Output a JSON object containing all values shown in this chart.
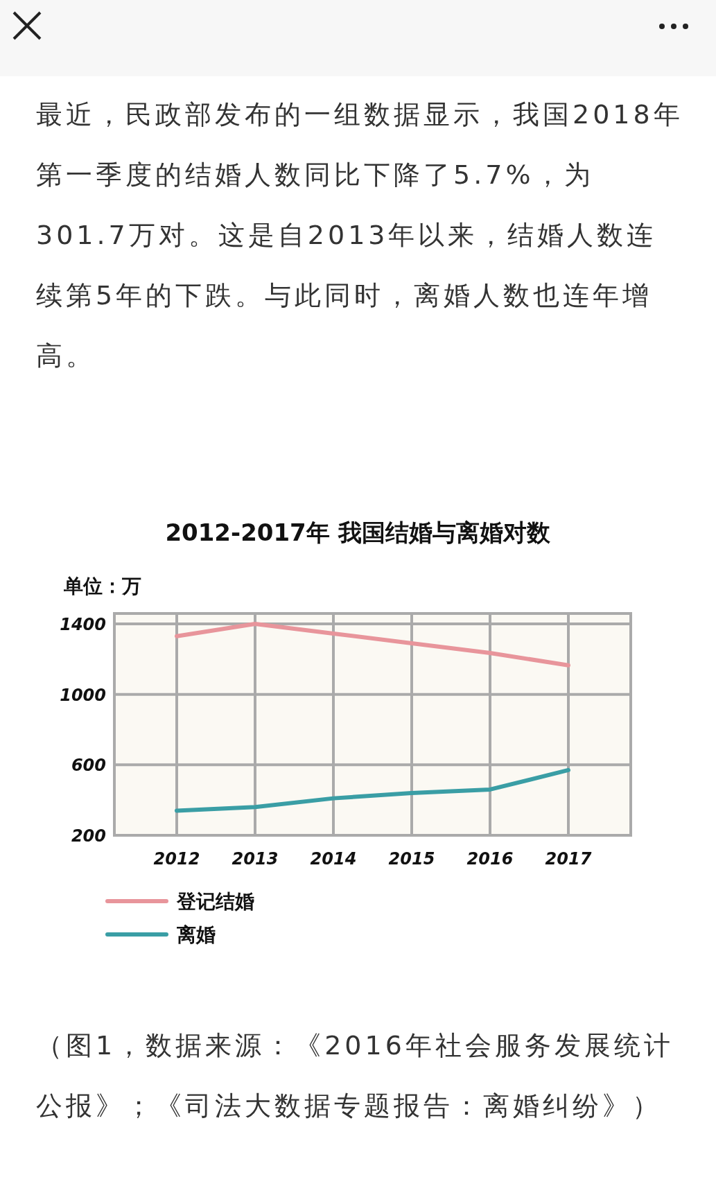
{
  "chart_data": {
    "type": "line",
    "title": "2012-2017年 我国结婚与离婚对数",
    "ylabel": "单位：万",
    "categories": [
      "2012",
      "2013",
      "2014",
      "2015",
      "2016",
      "2017"
    ],
    "series": [
      {
        "name": "登记结婚",
        "color": "#e8959b",
        "values": [
          1330,
          1400,
          1345,
          1290,
          1235,
          1165
        ]
      },
      {
        "name": "离婚",
        "color": "#3a9ea5",
        "values": [
          340,
          360,
          410,
          440,
          460,
          570
        ]
      }
    ],
    "ylim": [
      200,
      1400
    ],
    "yticks": [
      200,
      600,
      1000,
      1400
    ],
    "grid": true,
    "legend": "bottom left",
    "annotations": [
      "最近，民政部发布的一组数据显示，我国2018年第一季度的结婚人数同比下降了5.7%，为301.7万对。这是自2013年以来，结婚人数连续第5年的下跌。与此同时，离婚人数也连年增高。",
      "（图1，数据来源：《2016年社会服务发展统计公报》；《司法大数据专题报告：离婚纠纷》）"
    ]
  }
}
